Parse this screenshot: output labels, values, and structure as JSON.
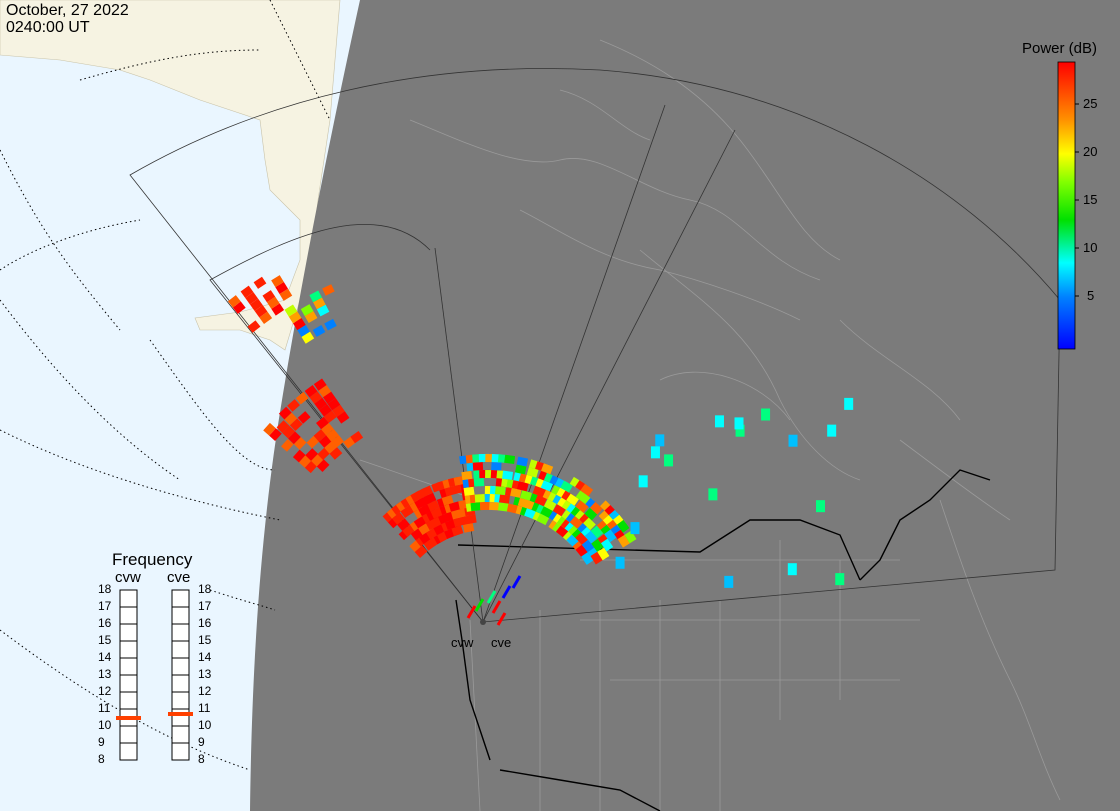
{
  "header": {
    "date": "October, 27 2022",
    "time": "0240:00 UT"
  },
  "colorbar": {
    "title": "Power (dB)",
    "ticks": [
      "25",
      "20",
      "15",
      "10",
      "5"
    ],
    "tick_values": [
      25,
      20,
      15,
      10,
      5
    ],
    "range": [
      0,
      30
    ],
    "colors": [
      "#0000ff",
      "#00a0ff",
      "#00ffff",
      "#00ff80",
      "#00e000",
      "#80ff00",
      "#ffff00",
      "#ffa000",
      "#ff6000",
      "#ff0000"
    ]
  },
  "frequency": {
    "title": "Frequency",
    "radars": [
      "cvw",
      "cve"
    ],
    "scale": [
      "18",
      "17",
      "16",
      "15",
      "14",
      "13",
      "12",
      "11",
      "10",
      "9",
      "8"
    ],
    "values_mhz": [
      10.5,
      10.7
    ],
    "marker_color": "#ff4000"
  },
  "radar_sites": [
    "cvw",
    "cve"
  ],
  "map": {
    "ocean_color": "#eaf6ff",
    "land_color": "#f6f3e2",
    "night_color": "#7b7b7b",
    "border_color": "#000000"
  }
}
